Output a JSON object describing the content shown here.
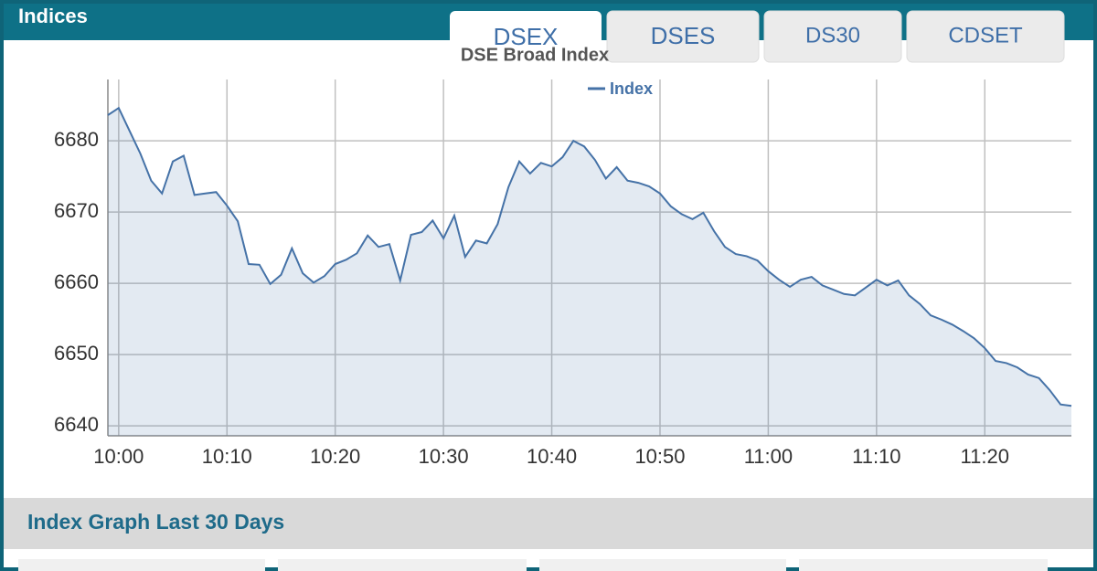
{
  "header": {
    "title": "Indices"
  },
  "tabs": [
    "DSEX",
    "DSES",
    "DS30",
    "CDSET"
  ],
  "section": {
    "title": "Index Graph Last 30 Days"
  },
  "chart_data": {
    "type": "line",
    "title": "DSE Broad Index",
    "x": [
      "9:59",
      "10:00",
      "10:01",
      "10:02",
      "10:03",
      "10:04",
      "10:05",
      "10:06",
      "10:07",
      "10:08",
      "10:09",
      "10:10",
      "10:11",
      "10:12",
      "10:13",
      "10:14",
      "10:15",
      "10:16",
      "10:17",
      "10:18",
      "10:19",
      "10:20",
      "10:21",
      "10:22",
      "10:23",
      "10:24",
      "10:25",
      "10:26",
      "10:27",
      "10:28",
      "10:29",
      "10:30",
      "10:31",
      "10:32",
      "10:33",
      "10:34",
      "10:35",
      "10:36",
      "10:37",
      "10:38",
      "10:39",
      "10:40",
      "10:41",
      "10:42",
      "10:43",
      "10:44",
      "10:45",
      "10:46",
      "10:47",
      "10:48",
      "10:49",
      "10:50",
      "10:51",
      "10:52",
      "10:53",
      "10:54",
      "10:55",
      "10:56",
      "10:57",
      "10:58",
      "10:59",
      "11:00",
      "11:01",
      "11:02",
      "11:03",
      "11:04",
      "11:05",
      "11:06",
      "11:07",
      "11:08",
      "11:09",
      "11:10",
      "11:11",
      "11:12",
      "11:13",
      "11:14",
      "11:15",
      "11:16",
      "11:17",
      "11:18",
      "11:19",
      "11:20",
      "11:21",
      "11:22",
      "11:23",
      "11:24",
      "11:25",
      "11:26",
      "11:27",
      "11:28"
    ],
    "series": [
      {
        "name": "Index",
        "color": "#4572a7",
        "values": [
          6683.6,
          6684.6,
          6681.4,
          6678.2,
          6674.4,
          6672.6,
          6677.1,
          6677.9,
          6672.4,
          6672.6,
          6672.8,
          6670.9,
          6668.7,
          6662.7,
          6662.6,
          6659.9,
          6661.2,
          6664.9,
          6661.4,
          6660.1,
          6661.0,
          6662.7,
          6663.3,
          6664.2,
          6666.7,
          6665.1,
          6665.5,
          6660.4,
          6666.8,
          6667.2,
          6668.8,
          6666.3,
          6669.5,
          6663.7,
          6666.0,
          6665.6,
          6668.3,
          6673.5,
          6677.1,
          6675.4,
          6676.9,
          6676.4,
          6677.7,
          6680.0,
          6679.2,
          6677.3,
          6674.7,
          6676.3,
          6674.4,
          6674.1,
          6673.6,
          6672.6,
          6670.8,
          6669.7,
          6669.0,
          6669.9,
          6667.3,
          6665.1,
          6664.1,
          6663.8,
          6663.2,
          6661.7,
          6660.5,
          6659.5,
          6660.5,
          6660.9,
          6659.7,
          6659.1,
          6658.5,
          6658.3,
          6659.4,
          6660.5,
          6659.7,
          6660.4,
          6658.3,
          6657.1,
          6655.5,
          6654.9,
          6654.2,
          6653.3,
          6652.3,
          6650.9,
          6649.1,
          6648.8,
          6648.2,
          6647.2,
          6646.7,
          6645.0,
          6643.0,
          6642.8
        ]
      }
    ],
    "ylim": [
      6638.6,
      6688.6
    ],
    "yticks": [
      6640,
      6650,
      6660,
      6670,
      6680
    ],
    "grid": true
  }
}
